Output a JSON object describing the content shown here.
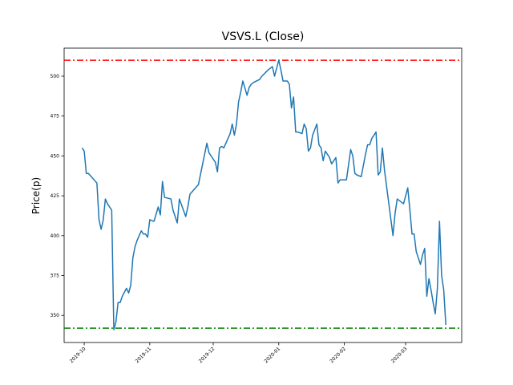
{
  "chart_data": {
    "type": "line",
    "title": "VSVS.L (Close)",
    "ylabel": "Price(p)",
    "x": [
      -1,
      0,
      1,
      2,
      6,
      7,
      8,
      9,
      10,
      11,
      13,
      14,
      15,
      16,
      17,
      18,
      20,
      21,
      22,
      23,
      24,
      25,
      27,
      28,
      29,
      30,
      31,
      33,
      35,
      36,
      37,
      38,
      41,
      42,
      44,
      45,
      48,
      49,
      50,
      52,
      54,
      56,
      58,
      59,
      61,
      62,
      63,
      64,
      65,
      66,
      69,
      70,
      71,
      72,
      73,
      74,
      75,
      77,
      78,
      79,
      80,
      83,
      84,
      87,
      89,
      90,
      91,
      92,
      93,
      94,
      96,
      97,
      98,
      99,
      100,
      101,
      103,
      104,
      105,
      106,
      107,
      108,
      110,
      111,
      112,
      113,
      114,
      116,
      117,
      119,
      120,
      121,
      124,
      126,
      127,
      128,
      129,
      131,
      133,
      134,
      135,
      136,
      137,
      138,
      139,
      140,
      141,
      142,
      146,
      147,
      148,
      149,
      151,
      153,
      154,
      155,
      156,
      157,
      159,
      160,
      161,
      162,
      163,
      164,
      165,
      166,
      167,
      168,
      169,
      170,
      171
    ],
    "series": [
      {
        "color": "#1f77b4",
        "values": [
          455,
          453,
          439,
          439,
          433,
          410,
          404,
          410,
          423,
          420,
          416,
          341,
          346,
          358,
          358,
          362,
          367,
          364,
          369,
          386,
          393,
          397,
          403,
          401,
          401,
          399,
          410,
          409,
          418,
          413,
          434,
          424,
          423,
          416,
          408,
          423,
          412,
          418,
          426,
          429,
          432,
          445,
          458,
          452,
          448,
          446,
          440,
          455,
          456,
          455,
          464,
          470,
          463,
          470,
          484,
          490,
          497,
          488,
          493,
          495,
          496,
          498,
          500,
          504,
          506,
          500,
          505,
          510,
          504,
          497,
          497,
          495,
          480,
          487,
          465,
          465,
          464,
          470,
          467,
          453,
          455,
          463,
          470,
          457,
          455,
          447,
          453,
          449,
          445,
          449,
          433,
          435,
          435,
          454,
          450,
          439,
          438,
          437,
          451,
          457,
          457,
          461,
          463,
          465,
          438,
          440,
          455,
          441,
          400,
          414,
          423,
          422,
          420,
          430,
          416,
          401,
          401,
          390,
          382,
          388,
          392,
          362,
          373,
          366,
          358,
          351,
          367,
          409,
          375,
          366,
          344
        ]
      }
    ],
    "hlines": [
      {
        "value": 510,
        "color": "#ff0000"
      },
      {
        "value": 342,
        "color": "#008000"
      }
    ],
    "xlim": [
      -9.5,
      178.5
    ],
    "ylim": [
      333,
      517.6
    ],
    "xticks": [
      {
        "value": 0,
        "label": "2019-10"
      },
      {
        "value": 31,
        "label": "2019-11"
      },
      {
        "value": 61,
        "label": "2019-12"
      },
      {
        "value": 92,
        "label": "2020-01"
      },
      {
        "value": 123,
        "label": "2020-02"
      },
      {
        "value": 152,
        "label": "2020-03"
      }
    ],
    "yticks": [
      350,
      375,
      400,
      425,
      450,
      475,
      500
    ]
  }
}
